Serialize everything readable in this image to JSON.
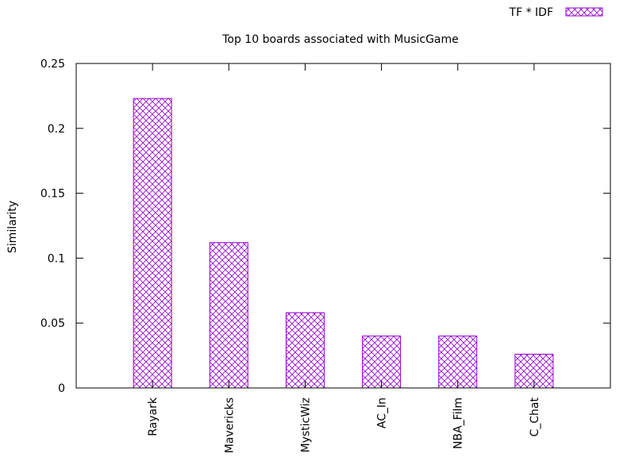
{
  "chart_data": {
    "type": "bar",
    "title": "Top 10 boards associated with MusicGame",
    "xlabel": "",
    "ylabel": "Similarity",
    "categories": [
      "Rayark",
      "Mavericks",
      "MysticWiz",
      "AC_In",
      "NBA_Film",
      "C_Chat"
    ],
    "series": [
      {
        "name": "TF * IDF",
        "values": [
          0.223,
          0.112,
          0.058,
          0.04,
          0.04,
          0.026
        ]
      }
    ],
    "ylim": [
      0,
      0.25
    ],
    "yticks": [
      "0",
      "0.05",
      "0.1",
      "0.15",
      "0.2",
      "0.25"
    ],
    "grid": false,
    "legend": "top-right",
    "pattern": "crosshatch",
    "color": "#9400d3"
  }
}
